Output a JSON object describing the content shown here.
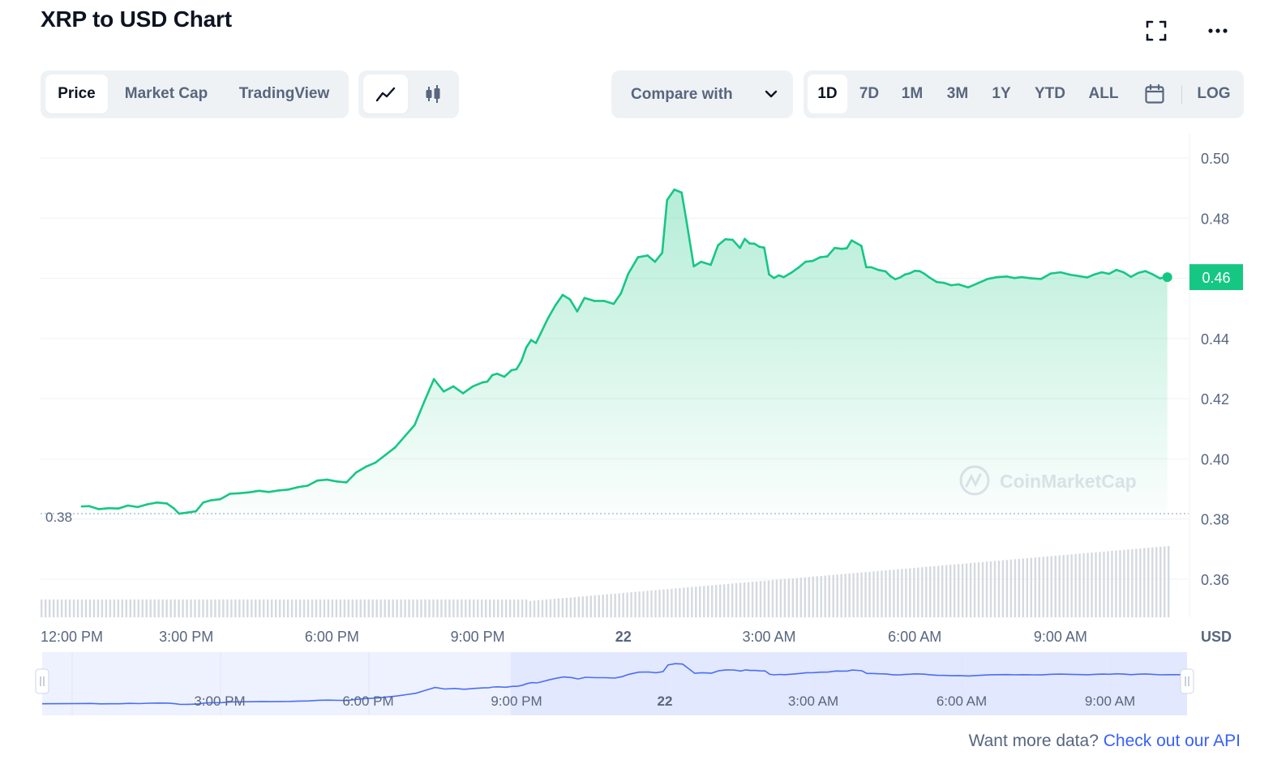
{
  "header": {
    "title": "XRP to USD Chart"
  },
  "tabs": [
    {
      "label": "Price",
      "active": true
    },
    {
      "label": "Market Cap",
      "active": false
    },
    {
      "label": "TradingView",
      "active": false
    }
  ],
  "chart_type_toggle": {
    "icons": [
      "line-chart-icon",
      "candlestick-icon"
    ],
    "active": "line-chart-icon"
  },
  "compare": {
    "label": "Compare with"
  },
  "ranges": [
    {
      "label": "1D",
      "active": true
    },
    {
      "label": "7D",
      "active": false
    },
    {
      "label": "1M",
      "active": false
    },
    {
      "label": "3M",
      "active": false
    },
    {
      "label": "1Y",
      "active": false
    },
    {
      "label": "YTD",
      "active": false
    },
    {
      "label": "ALL",
      "active": false
    }
  ],
  "log_label": "LOG",
  "colors": {
    "up": "#16c784",
    "down": "#ea3943",
    "accent": "#3861fb",
    "muted": "#58667e"
  },
  "chart_data": {
    "type": "line",
    "title": "",
    "xlabel": "",
    "ylabel": "USD",
    "ylim": [
      0.35,
      0.505
    ],
    "y_ticks": [
      0.5,
      0.48,
      0.46,
      0.44,
      0.42,
      0.4,
      0.38,
      0.36
    ],
    "x_ticks": [
      {
        "t": 0,
        "label": "12:00 PM",
        "bold": false
      },
      {
        "t": 3,
        "label": "3:00 PM",
        "bold": false
      },
      {
        "t": 6,
        "label": "6:00 PM",
        "bold": false
      },
      {
        "t": 9,
        "label": "9:00 PM",
        "bold": false
      },
      {
        "t": 12,
        "label": "22",
        "bold": true
      },
      {
        "t": 15,
        "label": "3:00 AM",
        "bold": false
      },
      {
        "t": 18,
        "label": "6:00 AM",
        "bold": false
      },
      {
        "t": 21,
        "label": "9:00 AM",
        "bold": false
      }
    ],
    "x_range": [
      0,
      23.6
    ],
    "open_price": 0.3818,
    "open_price_label": "0.38",
    "current_price": 0.4604,
    "current_price_label": "0.46",
    "series": [
      {
        "values_t": [
          0.85,
          1.0,
          1.2,
          1.4,
          1.6,
          1.8,
          2.0,
          2.2,
          2.4,
          2.6,
          2.75,
          2.85,
          3.0,
          3.2,
          3.35,
          3.5,
          3.7,
          3.9,
          4.1,
          4.3,
          4.5,
          4.7,
          4.9,
          5.1,
          5.3,
          5.5,
          5.7,
          5.9,
          6.1,
          6.3,
          6.5,
          6.7,
          6.9,
          7.1,
          7.3,
          7.5,
          7.7,
          7.9,
          8.1,
          8.3,
          8.5,
          8.7,
          8.9,
          9.1,
          9.2,
          9.3,
          9.4,
          9.55,
          9.7,
          9.8,
          9.9,
          10.0,
          10.1,
          10.2,
          10.3,
          10.45,
          10.6,
          10.75,
          10.9,
          11.05,
          11.2,
          11.4,
          11.6,
          11.8,
          11.95,
          12.1,
          12.3,
          12.5,
          12.65,
          12.8,
          12.9,
          13.05,
          13.2,
          13.3,
          13.45,
          13.6,
          13.8,
          13.95,
          14.1,
          14.25,
          14.4,
          14.5,
          14.6,
          14.7,
          14.8,
          14.9,
          15.0,
          15.1,
          15.2,
          15.3,
          15.45,
          15.6,
          15.75,
          15.9,
          16.05,
          16.2,
          16.35,
          16.5,
          16.6,
          16.7,
          16.8,
          16.9,
          17.0,
          17.1,
          17.25,
          17.4,
          17.5,
          17.6,
          17.7,
          17.8,
          17.9,
          18.0,
          18.1,
          18.2,
          18.3,
          18.45,
          18.6,
          18.75,
          18.9,
          19.1,
          19.3,
          19.5,
          19.7,
          19.9,
          20.05,
          20.2,
          20.4,
          20.6,
          20.8,
          21.0,
          21.2,
          21.4,
          21.55,
          21.7,
          21.85,
          22.0,
          22.15,
          22.3,
          22.45,
          22.6,
          22.75,
          22.9,
          23.05,
          23.2
        ],
        "values": [
          0.3842,
          0.3843,
          0.3833,
          0.3836,
          0.3835,
          0.3845,
          0.384,
          0.3849,
          0.3855,
          0.3852,
          0.3835,
          0.3818,
          0.3821,
          0.3826,
          0.3855,
          0.3862,
          0.3866,
          0.3884,
          0.3886,
          0.3889,
          0.3894,
          0.389,
          0.3895,
          0.3898,
          0.3906,
          0.3911,
          0.3928,
          0.3931,
          0.3925,
          0.3922,
          0.3955,
          0.3974,
          0.3988,
          0.4013,
          0.4038,
          0.4075,
          0.4112,
          0.419,
          0.4265,
          0.4224,
          0.4241,
          0.4218,
          0.4241,
          0.4254,
          0.4257,
          0.4278,
          0.4283,
          0.4273,
          0.4295,
          0.4298,
          0.4325,
          0.437,
          0.4395,
          0.4385,
          0.4418,
          0.4468,
          0.451,
          0.4545,
          0.453,
          0.449,
          0.4535,
          0.4525,
          0.4525,
          0.4515,
          0.455,
          0.4615,
          0.467,
          0.4676,
          0.4655,
          0.4685,
          0.486,
          0.4895,
          0.4885,
          0.479,
          0.464,
          0.4655,
          0.4645,
          0.471,
          0.473,
          0.4728,
          0.4701,
          0.4731,
          0.4716,
          0.4715,
          0.4705,
          0.4702,
          0.4613,
          0.4601,
          0.461,
          0.4604,
          0.4618,
          0.4635,
          0.4655,
          0.4658,
          0.467,
          0.4673,
          0.4701,
          0.4698,
          0.47,
          0.4726,
          0.4717,
          0.4708,
          0.4637,
          0.4637,
          0.4628,
          0.4623,
          0.4607,
          0.4597,
          0.4603,
          0.4613,
          0.4617,
          0.4625,
          0.4624,
          0.4615,
          0.4603,
          0.4588,
          0.4585,
          0.4577,
          0.458,
          0.457,
          0.4584,
          0.4598,
          0.4604,
          0.4606,
          0.4601,
          0.4604,
          0.46,
          0.4598,
          0.4616,
          0.462,
          0.4612,
          0.4607,
          0.4603,
          0.4613,
          0.462,
          0.4615,
          0.4628,
          0.462,
          0.4605,
          0.4618,
          0.4624,
          0.4613,
          0.46,
          0.4604
        ]
      }
    ],
    "volume": {
      "start": 0.15,
      "end": 0.55
    },
    "navigator": {
      "x_ticks": [
        "3:00 PM",
        "6:00 PM",
        "9:00 PM",
        "22",
        "3:00 AM",
        "6:00 AM",
        "9:00 AM"
      ]
    },
    "watermark": "CoinMarketCap"
  },
  "footer": {
    "text": "Want more data?",
    "link": "Check out our API"
  }
}
